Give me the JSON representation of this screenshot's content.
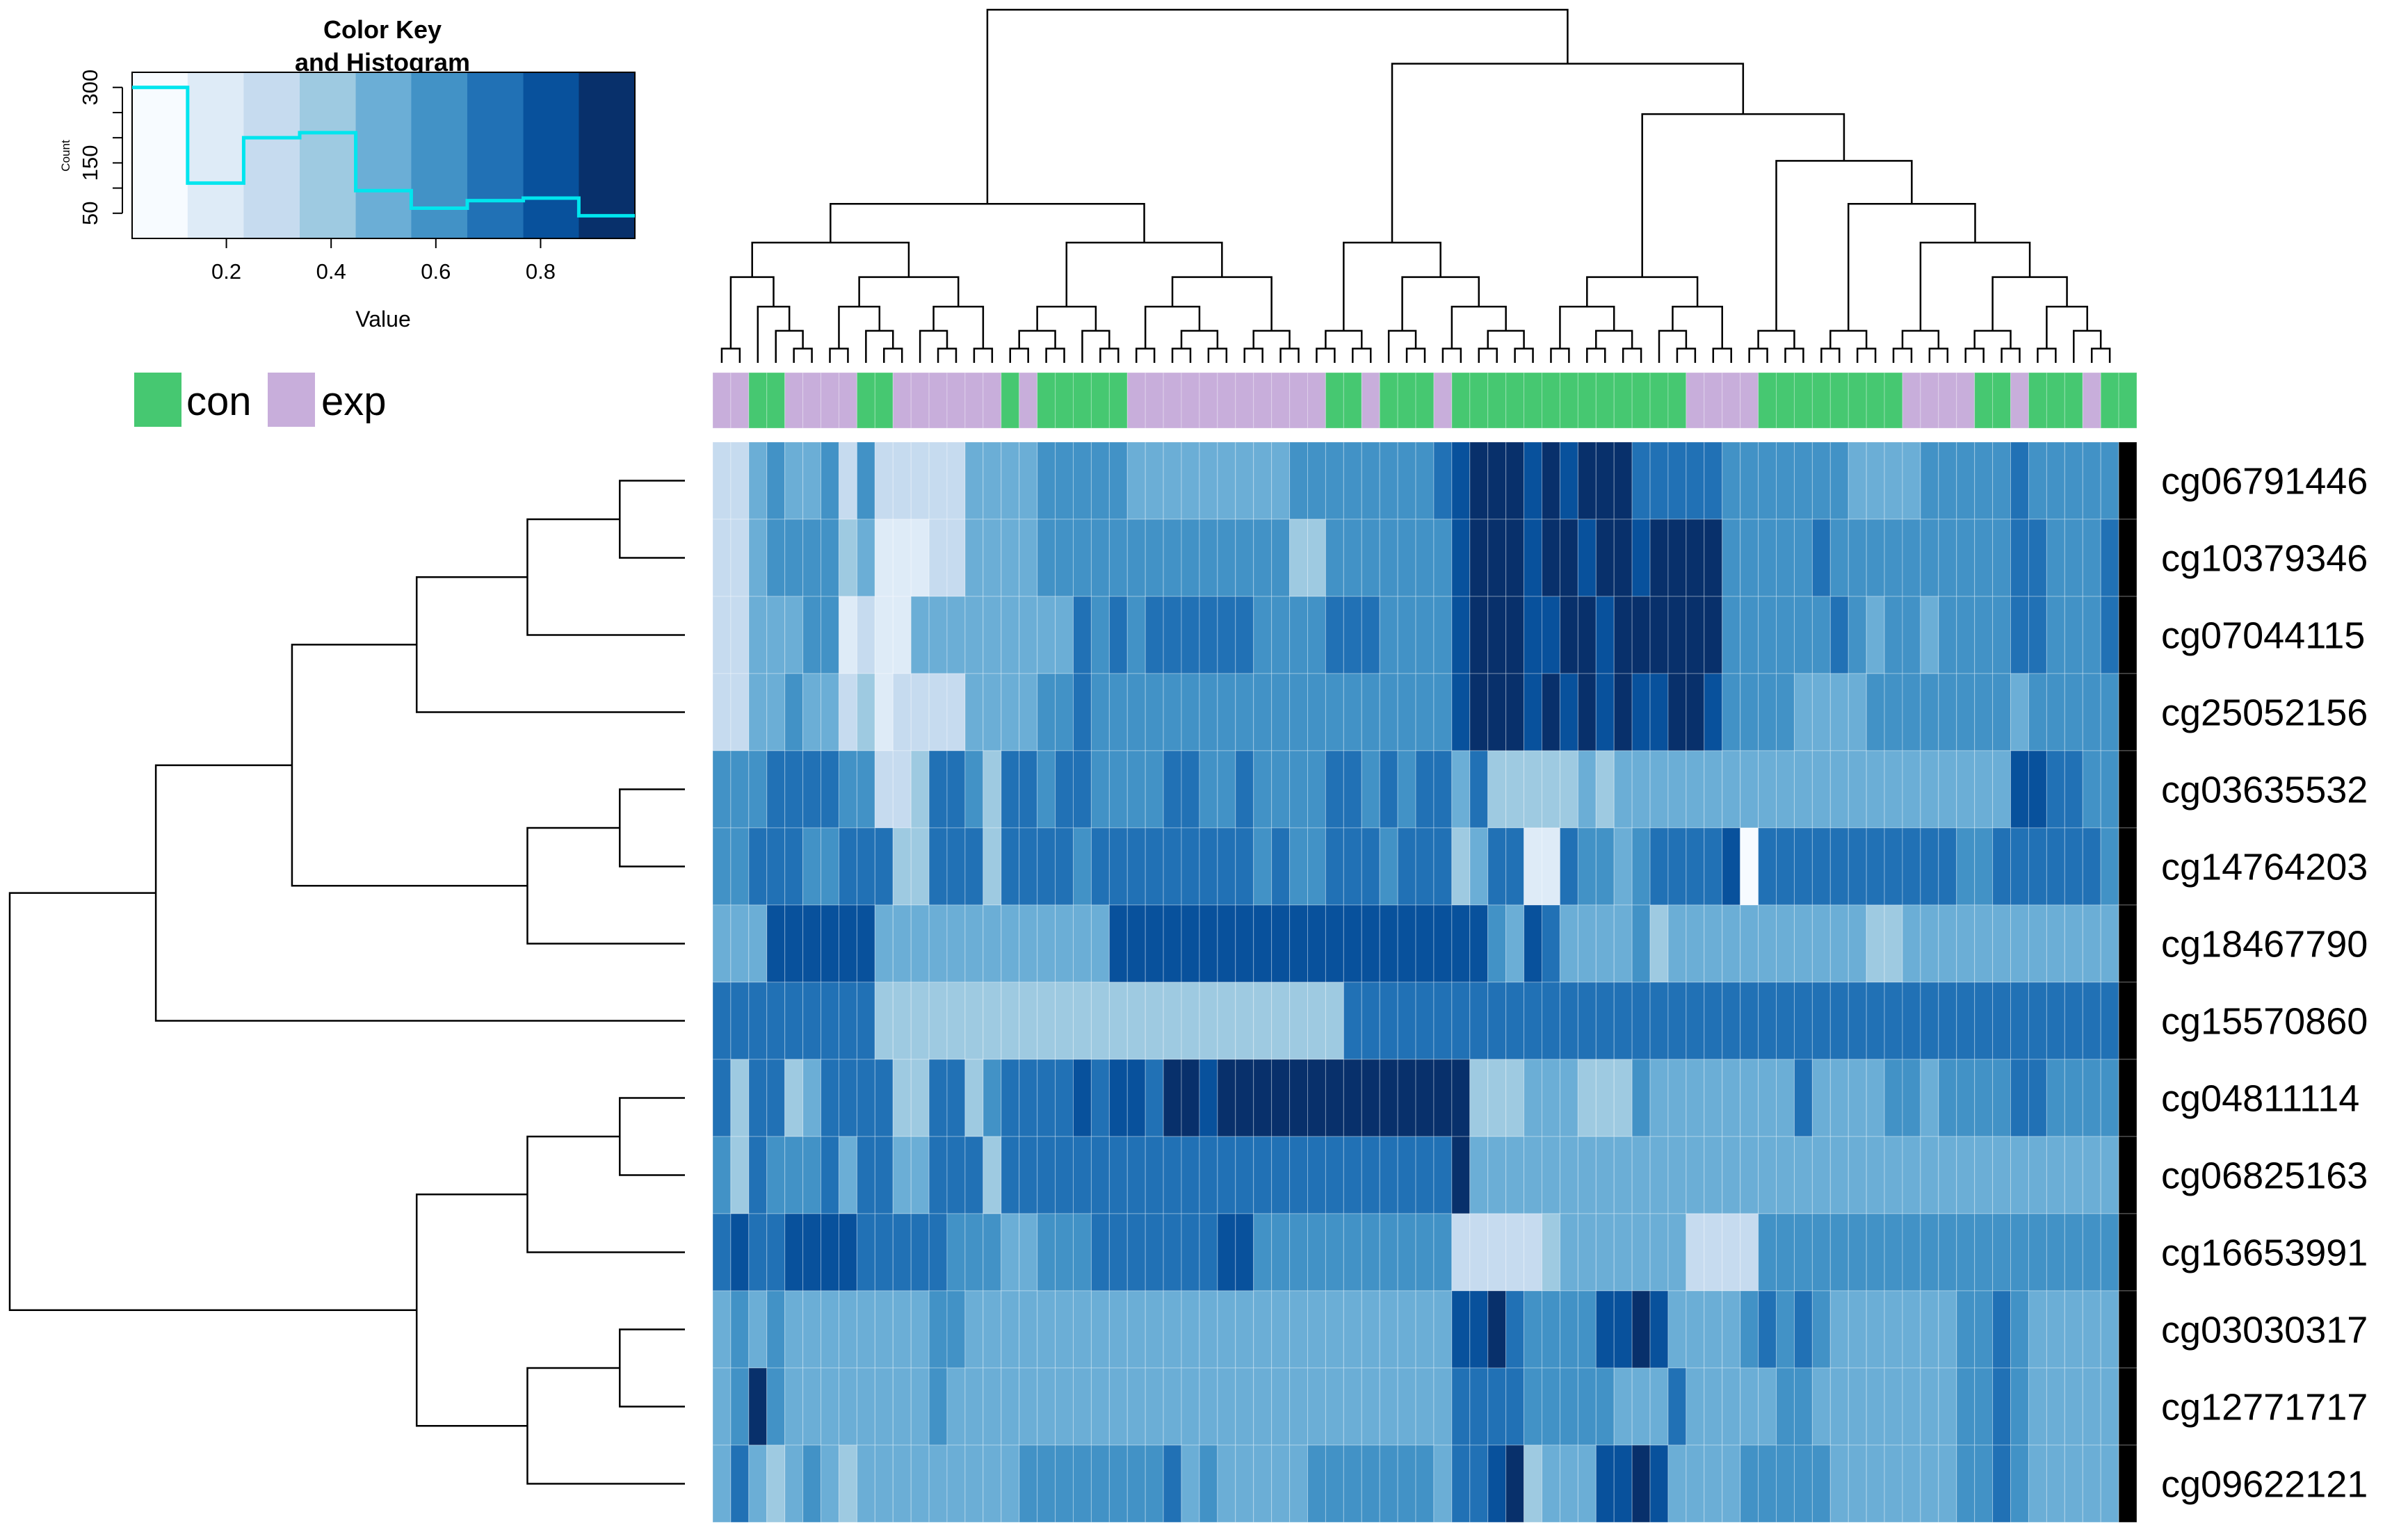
{
  "chart_data": {
    "type": "heatmap",
    "title": "",
    "color_key": {
      "title_line1": "Color Key",
      "title_line2": "and Histogram",
      "xlabel": "Value",
      "ylabel": "Count",
      "x_ticks": [
        "0.2",
        "0.4",
        "0.6",
        "0.8"
      ],
      "x_tick_values": [
        0.2,
        0.4,
        0.6,
        0.8
      ],
      "y_ticks": [
        "50",
        "150",
        "300"
      ],
      "y_tick_values": [
        50,
        150,
        300
      ],
      "y_minor_ticks": [
        100,
        200,
        250
      ],
      "xlim": [
        0.02,
        0.98
      ],
      "ylim": [
        0,
        330
      ],
      "bins": [
        0.02,
        0.126,
        0.233,
        0.34,
        0.447,
        0.553,
        0.66,
        0.767,
        0.873,
        0.98
      ],
      "palette": [
        "#f7fbff",
        "#deebf7",
        "#c6dbef",
        "#9ecae1",
        "#6baed6",
        "#4292c6",
        "#2171b5",
        "#08519c",
        "#08306b"
      ],
      "histogram_counts": [
        300,
        110,
        200,
        210,
        95,
        60,
        75,
        80,
        45
      ],
      "histogram_color": "#00e5ee"
    },
    "legend": [
      {
        "label": "con",
        "color": "#46c871"
      },
      {
        "label": "exp",
        "color": "#c8aedb"
      }
    ],
    "rows": [
      "cg06791446",
      "cg10379346",
      "cg07044115",
      "cg25052156",
      "cg03635532",
      "cg14764203",
      "cg18467790",
      "cg15570860",
      "cg04811114",
      "cg06825163",
      "cg16653991",
      "cg03030317",
      "cg12771717",
      "cg09622121"
    ],
    "groups": "eecceeeecceeeeeececcccceeeeeeeeeeecceccceccccccccccccceeeecccccccceeeeccecccecc",
    "values": [
      "224544525222224444555554444444445555555567888787888666665555555444455555655555",
      "224555534111224444555555555555553355555557888788788788885555565555555555665556",
      "224445512114444444446565666666555566655557888778878888885555556545545555665556",
      "224454423122224444556555555555555555555557888787878778875555444455555555455555",
      "555666655223665366566555566556555566565664633333434444444444444444444444776655",
      "556665566633666366665666666666565566656663466116554566667066666666666556666665",
      "444777777444444444444477777777777777777777754764444534444444444433444444444444",
      "666666666333333333333333333333333336666666666666666666666666666666666666666666",
      "636634666633663566667677688788888888888888333444333544444444644445545555665555",
      "536555646644666366666666666666666666666668444444444444444444444444444444444444",
      "676677776666655544555666666677555555555552222234444444222255555555555555555555",
      "454544444444554444444444444444444444444447786555577874444565654444444556544444",
      "458544444444544444444444444444444444444446666555554446444445544444444556544444",
      "464345434444444445555555564544444555555546678344477874444555554444444556544444"
    ],
    "column_dendrogram": "(((((1,2),(3,(4,(5,6)))),(((7,8),(9,(10,11))),((12,(13,14)),(15,16)))),((((17,18),(19,20)),(21,(22,23))),(((24,25),((26,27),(28,29))),((30,31),(32,33))))),((((34,35),(36,37)),((38,(39,40)),((41,42),((43,44),(45,46))))),((((47,48),((49,50),(51,52))),((53,(54,55)),(56,57))),(((58,59),(60,61)),(((62,63),(64,65)),(((66,67),(68,69)),(((70,71),(72,73)),((74,75),(76,(77,78))))))))))",
    "row_dendrogram": "((((((0,1),2),3),((4,5),6)),7),(((8,9),10),((11,12),13)))"
  }
}
